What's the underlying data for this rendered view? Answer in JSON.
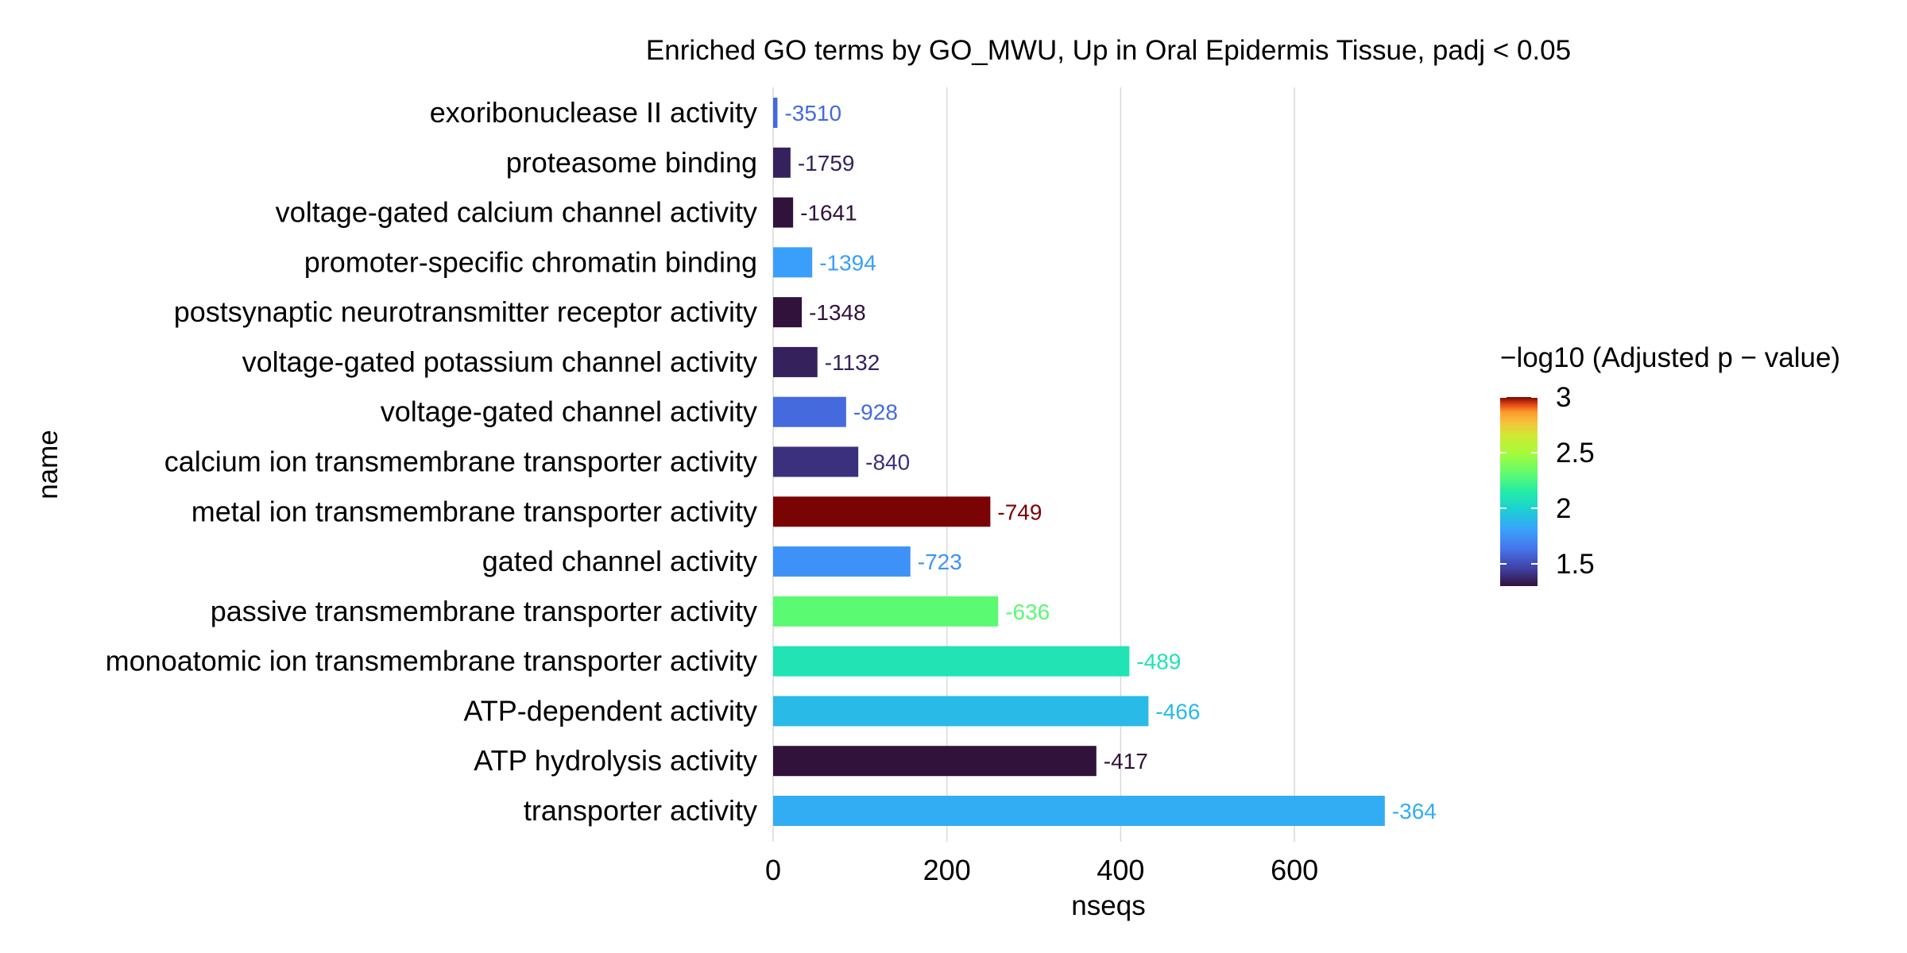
{
  "chart_data": {
    "type": "bar",
    "orientation": "horizontal",
    "title": "Enriched GO terms by GO_MWU, Up in Oral Epidermis Tissue, padj < 0.05",
    "xlabel": "nseqs",
    "ylabel": "name",
    "xlim": [
      0,
      770
    ],
    "xticks": [
      0,
      200,
      400,
      600
    ],
    "grid": "vertical",
    "categories": [
      "exoribonuclease II activity",
      "proteasome binding",
      "voltage-gated calcium channel activity",
      "promoter-specific chromatin binding",
      "postsynaptic neurotransmitter receptor activity",
      "voltage-gated potassium channel activity",
      "voltage-gated channel activity",
      "calcium ion transmembrane transporter activity",
      "metal ion transmembrane transporter activity",
      "gated channel activity",
      "passive transmembrane transporter activity",
      "monoatomic ion transmembrane transporter activity",
      "ATP-dependent activity",
      "ATP hydrolysis activity",
      "transporter activity"
    ],
    "values": [
      5,
      20,
      23,
      45,
      33,
      51,
      84,
      98,
      250,
      158,
      259,
      410,
      432,
      372,
      704
    ],
    "labels": [
      "-3510",
      "-1759",
      "-1641",
      "-1394",
      "-1348",
      "-1132",
      "-928",
      "-840",
      "-749",
      "-723",
      "-636",
      "-489",
      "-466",
      "-417",
      "-364"
    ],
    "neg_log10_padj": [
      1.6,
      1.35,
      1.3,
      1.8,
      1.3,
      1.35,
      1.6,
      1.4,
      3.0,
      1.75,
      2.3,
      2.1,
      1.9,
      1.3,
      1.85
    ],
    "legend": {
      "title": "−log10 (Adjusted p − value)",
      "position": "right",
      "range": [
        1.3,
        3.0
      ],
      "ticks": [
        {
          "value": 1.5,
          "label": "1.5"
        },
        {
          "value": 2.0,
          "label": "2"
        },
        {
          "value": 2.5,
          "label": "2.5"
        },
        {
          "value": 3.0,
          "label": "3"
        }
      ]
    }
  }
}
